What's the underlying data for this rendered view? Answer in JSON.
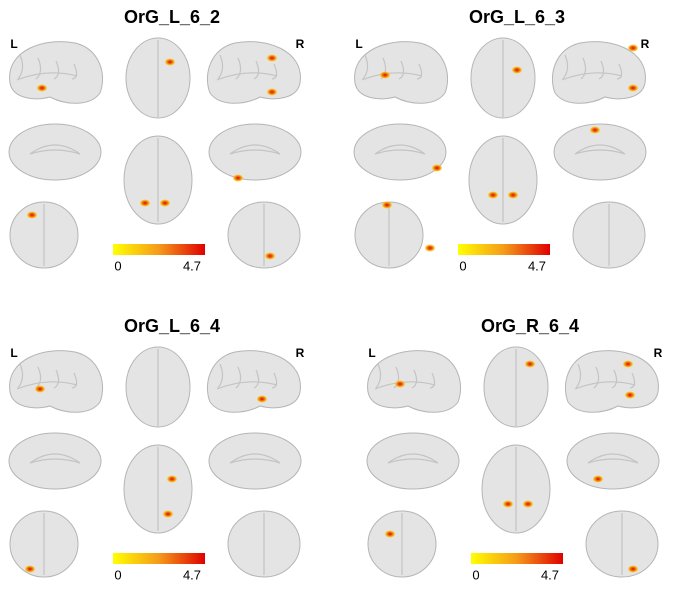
{
  "panels": [
    {
      "title": "OrG_L_6_2",
      "left_label": "L",
      "right_label": "R",
      "colorbar": {
        "min": 0,
        "max": 4.7
      }
    },
    {
      "title": "OrG_L_6_3",
      "left_label": "L",
      "right_label": "R",
      "colorbar": {
        "min": 0,
        "max": 4.7
      }
    },
    {
      "title": "OrG_L_6_4",
      "left_label": "L",
      "right_label": "R",
      "colorbar": {
        "min": 0,
        "max": 4.7
      }
    },
    {
      "title": "OrG_R_6_4",
      "left_label": "L",
      "right_label": "R",
      "colorbar": {
        "min": 0,
        "max": 4.7
      }
    }
  ]
}
